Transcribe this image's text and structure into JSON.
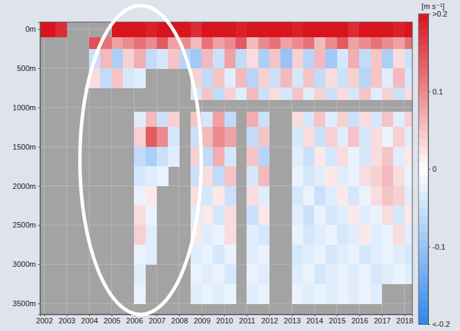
{
  "chart_data": {
    "type": "heatmap",
    "xlim": [
      2001.82,
      2018.35
    ],
    "xticks": [
      2002,
      2003,
      2004,
      2005,
      2006,
      2007,
      2008,
      2009,
      2010,
      2011,
      2012,
      2013,
      2014,
      2015,
      2016,
      2017,
      2018
    ],
    "ylim": [
      -90,
      3640
    ],
    "yticks": [
      {
        "value": 0,
        "label": "0m"
      },
      {
        "value": 500,
        "label": "500m"
      },
      {
        "value": 1000,
        "label": "1000m"
      },
      {
        "value": 1500,
        "label": "1500m"
      },
      {
        "value": 2000,
        "label": "2000m"
      },
      {
        "value": 2500,
        "label": "2500m"
      },
      {
        "value": 3000,
        "label": "3000m"
      },
      {
        "value": 3500,
        "label": "3500m"
      }
    ],
    "grid": true,
    "x_edges": [
      2001.82,
      2002.5,
      2003,
      2003.5,
      2004,
      2004.5,
      2005,
      2005.5,
      2006,
      2006.5,
      2007,
      2007.5,
      2008,
      2008.5,
      2009,
      2009.5,
      2010,
      2010.5,
      2011,
      2011.5,
      2012,
      2012.5,
      2013,
      2013.5,
      2014,
      2014.5,
      2015,
      2015.5,
      2016,
      2016.5,
      2017,
      2017.5,
      2018,
      2018.35
    ],
    "y_edges": [
      -90,
      100,
      250,
      500,
      750,
      900,
      1050,
      1250,
      1500,
      1750,
      2000,
      2250,
      2500,
      2750,
      3000,
      3250,
      3500
    ],
    "cells": [
      [
        0.2,
        0.18,
        null,
        null,
        null,
        null,
        0.2,
        0.2,
        0.2,
        0.19,
        0.2,
        0.2,
        0.2,
        0.18,
        0.2,
        0.2,
        0.2,
        0.19,
        0.2,
        0.2,
        0.2,
        0.2,
        0.19,
        0.2,
        0.2,
        0.2,
        0.2,
        0.18,
        0.2,
        0.2,
        0.2,
        0.19,
        0.2
      ],
      [
        null,
        null,
        null,
        null,
        0.15,
        0.12,
        0.08,
        0.1,
        0.12,
        0.1,
        0.14,
        0.08,
        0.1,
        0.06,
        0.12,
        0.08,
        0.1,
        0.14,
        0.06,
        0.1,
        0.12,
        0.08,
        0.1,
        0.12,
        0.06,
        0.1,
        0.14,
        0.08,
        0.1,
        0.12,
        0.1,
        0.08,
        0.12
      ],
      [
        null,
        null,
        null,
        null,
        -0.05,
        0.06,
        -0.08,
        0.04,
        0.07,
        -0.06,
        -0.04,
        0.05,
        -0.07,
        -0.09,
        0.06,
        -0.05,
        0.08,
        -0.06,
        0.03,
        -0.08,
        0.05,
        -0.1,
        0.04,
        -0.07,
        0.06,
        -0.09,
        -0.04,
        0.07,
        -0.06,
        0.05,
        -0.08,
        0.03,
        -0.05
      ],
      [
        null,
        null,
        null,
        null,
        0.03,
        -0.06,
        0.05,
        -0.04,
        -0.03,
        null,
        null,
        null,
        null,
        0.04,
        -0.06,
        0.05,
        -0.03,
        0.06,
        -0.07,
        0.04,
        -0.05,
        0.06,
        -0.04,
        0.05,
        -0.06,
        0.03,
        -0.05,
        0.04,
        -0.07,
        0.05,
        -0.03,
        0.06,
        -0.04
      ],
      [
        null,
        null,
        null,
        null,
        null,
        null,
        null,
        null,
        null,
        null,
        null,
        null,
        null,
        -0.04,
        0.05,
        -0.06,
        0.04,
        -0.03,
        0.06,
        -0.05,
        0.03,
        -0.04,
        0.05,
        -0.03,
        0.04,
        -0.05,
        0.03,
        -0.04,
        0.05,
        -0.03,
        0.04,
        -0.05,
        0.03
      ],
      [
        null,
        null,
        null,
        null,
        null,
        null,
        null,
        null,
        null,
        null,
        null,
        null,
        null,
        null,
        null,
        null,
        null,
        null,
        null,
        null,
        null,
        null,
        null,
        null,
        null,
        null,
        null,
        null,
        null,
        null,
        null,
        null,
        null
      ],
      [
        null,
        null,
        null,
        null,
        null,
        null,
        null,
        null,
        -0.03,
        0.06,
        -0.05,
        0.04,
        null,
        0.05,
        -0.04,
        0.08,
        -0.06,
        null,
        0.07,
        -0.05,
        null,
        null,
        0.03,
        -0.04,
        0.05,
        -0.03,
        0.04,
        -0.05,
        0.03,
        -0.04,
        0.05,
        -0.03,
        0.04
      ],
      [
        null,
        null,
        null,
        null,
        null,
        null,
        null,
        null,
        0.04,
        0.14,
        0.1,
        -0.04,
        null,
        -0.05,
        0.06,
        0.1,
        0.08,
        null,
        -0.06,
        0.05,
        null,
        null,
        -0.04,
        0.03,
        -0.05,
        0.04,
        -0.03,
        0.05,
        -0.04,
        0.03,
        -0.02,
        0.04,
        -0.03
      ],
      [
        null,
        null,
        null,
        null,
        null,
        null,
        null,
        null,
        -0.06,
        -0.08,
        -0.05,
        -0.03,
        null,
        0.04,
        -0.06,
        0.07,
        -0.04,
        null,
        0.05,
        -0.07,
        null,
        null,
        -0.03,
        -0.05,
        0.02,
        -0.04,
        0.03,
        -0.02,
        -0.04,
        0.03,
        0.05,
        -0.03,
        0.02
      ],
      [
        null,
        null,
        null,
        null,
        null,
        null,
        null,
        null,
        -0.04,
        -0.03,
        -0.02,
        null,
        null,
        -0.05,
        0.03,
        -0.06,
        0.05,
        null,
        -0.04,
        0.06,
        null,
        null,
        -0.02,
        -0.04,
        -0.03,
        0.02,
        -0.03,
        -0.02,
        0.03,
        0.04,
        0.06,
        0.03,
        -0.02
      ],
      [
        null,
        null,
        null,
        null,
        null,
        null,
        null,
        null,
        -0.02,
        0.02,
        null,
        null,
        null,
        0.03,
        -0.04,
        0.02,
        -0.05,
        null,
        0.03,
        -0.03,
        null,
        null,
        -0.04,
        -0.02,
        -0.05,
        -0.03,
        0.02,
        -0.04,
        -0.02,
        0.03,
        0.05,
        0.04,
        -0.03
      ],
      [
        null,
        null,
        null,
        null,
        null,
        null,
        null,
        null,
        0.03,
        -0.02,
        null,
        null,
        null,
        -0.03,
        0.02,
        -0.04,
        0.03,
        null,
        -0.05,
        0.02,
        null,
        null,
        -0.03,
        -0.05,
        -0.02,
        -0.04,
        -0.03,
        0.02,
        -0.03,
        -0.02,
        0.03,
        -0.04,
        0.02
      ],
      [
        null,
        null,
        null,
        null,
        null,
        null,
        null,
        null,
        0.04,
        -0.03,
        null,
        null,
        null,
        0.02,
        -0.03,
        -0.02,
        0.03,
        null,
        -0.03,
        -0.04,
        null,
        null,
        -0.02,
        -0.04,
        -0.03,
        -0.02,
        -0.04,
        -0.03,
        0.02,
        -0.03,
        -0.02,
        0.03,
        -0.03
      ],
      [
        null,
        null,
        null,
        null,
        null,
        null,
        null,
        null,
        -0.02,
        -0.03,
        null,
        null,
        null,
        -0.03,
        -0.02,
        -0.04,
        -0.02,
        null,
        -0.03,
        -0.02,
        null,
        null,
        -0.04,
        -0.03,
        -0.02,
        -0.04,
        -0.03,
        -0.02,
        -0.04,
        -0.03,
        -0.02,
        -0.03,
        -0.04
      ],
      [
        null,
        null,
        null,
        null,
        null,
        null,
        null,
        null,
        -0.03,
        null,
        null,
        null,
        null,
        -0.02,
        -0.03,
        -0.02,
        -0.04,
        null,
        -0.02,
        -0.03,
        null,
        null,
        -0.03,
        -0.02,
        -0.04,
        -0.03,
        -0.02,
        -0.03,
        -0.02,
        -0.04,
        -0.03,
        -0.02,
        -0.03
      ],
      [
        null,
        null,
        null,
        null,
        null,
        null,
        null,
        null,
        -0.02,
        null,
        null,
        null,
        null,
        -0.03,
        -0.02,
        -0.03,
        -0.02,
        null,
        -0.03,
        -0.02,
        null,
        null,
        -0.02,
        -0.03,
        -0.02,
        -0.03,
        -0.02,
        -0.03,
        -0.02,
        -0.03,
        null,
        null,
        null
      ]
    ],
    "colorbar_label": "[m s⁻¹]",
    "colorbar_range": [
      -0.2,
      0.2
    ],
    "colorbar_ticks": [
      {
        "value": 0.2,
        "label": ">0.2"
      },
      0.1,
      0,
      -0.1,
      {
        "value": -0.2,
        "label": "<-0.2"
      }
    ]
  }
}
